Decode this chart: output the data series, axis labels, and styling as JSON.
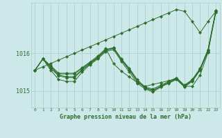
{
  "title": "Graphe pression niveau de la mer (hPa)",
  "background_color": "#cce8e8",
  "grid_color": "#aacccc",
  "line_color": "#2d6e2d",
  "marker_color": "#2d6e2d",
  "xlim": [
    -0.5,
    23.5
  ],
  "ylim": [
    1014.55,
    1017.35
  ],
  "yticks": [
    1015,
    1016
  ],
  "xticks": [
    0,
    1,
    2,
    3,
    4,
    5,
    6,
    7,
    8,
    9,
    10,
    11,
    12,
    13,
    14,
    15,
    16,
    17,
    18,
    19,
    20,
    21,
    22,
    23
  ],
  "series": [
    [
      1015.55,
      1015.85,
      1015.65,
      1015.45,
      1015.45,
      1015.45,
      1015.6,
      1015.75,
      1015.9,
      1016.1,
      1016.15,
      1015.85,
      1015.6,
      1015.3,
      1015.1,
      1015.05,
      1015.15,
      1015.25,
      1015.35,
      1015.15,
      1015.3,
      1015.6,
      1016.1,
      1017.15
    ],
    [
      1015.55,
      1015.85,
      1015.6,
      1015.4,
      1015.35,
      1015.35,
      1015.55,
      1015.72,
      1015.88,
      1016.08,
      1016.13,
      1015.82,
      1015.55,
      1015.25,
      1015.08,
      1015.02,
      1015.12,
      1015.22,
      1015.32,
      1015.12,
      1015.27,
      1015.57,
      1016.07,
      1017.12
    ],
    [
      1015.55,
      1015.85,
      1015.55,
      1015.3,
      1015.25,
      1015.25,
      1015.5,
      1015.7,
      1015.85,
      1016.05,
      1016.1,
      1015.78,
      1015.5,
      1015.2,
      1015.05,
      1014.97,
      1015.1,
      1015.2,
      1015.3,
      1015.1,
      1015.25,
      1015.55,
      1016.05,
      1017.1
    ],
    [
      1015.55,
      1015.85,
      1015.62,
      1015.42,
      1015.38,
      1015.38,
      1015.57,
      1015.73,
      1015.9,
      1016.1,
      1016.15,
      1015.84,
      1015.57,
      1015.27,
      1015.07,
      1015.0,
      1015.12,
      1015.23,
      1015.33,
      1015.13,
      1015.28,
      1015.58,
      1016.08,
      1017.13
    ],
    [
      1015.55,
      1015.86,
      1015.67,
      1015.47,
      1015.47,
      1015.47,
      1015.62,
      1015.77,
      1015.93,
      1016.13,
      1015.72,
      1015.52,
      1015.37,
      1015.22,
      1015.12,
      1015.17,
      1015.22,
      1015.27,
      1015.32,
      1015.12,
      1015.12,
      1015.42,
      1016.02,
      1017.12
    ]
  ],
  "series_diagonal": [
    1015.55,
    1015.64,
    1015.73,
    1015.82,
    1015.91,
    1016.0,
    1016.09,
    1016.18,
    1016.27,
    1016.36,
    1016.45,
    1016.54,
    1016.63,
    1016.72,
    1016.81,
    1016.9,
    1016.99,
    1017.08,
    1017.17,
    1017.12,
    1016.85,
    1016.55,
    1016.85,
    1017.12
  ]
}
